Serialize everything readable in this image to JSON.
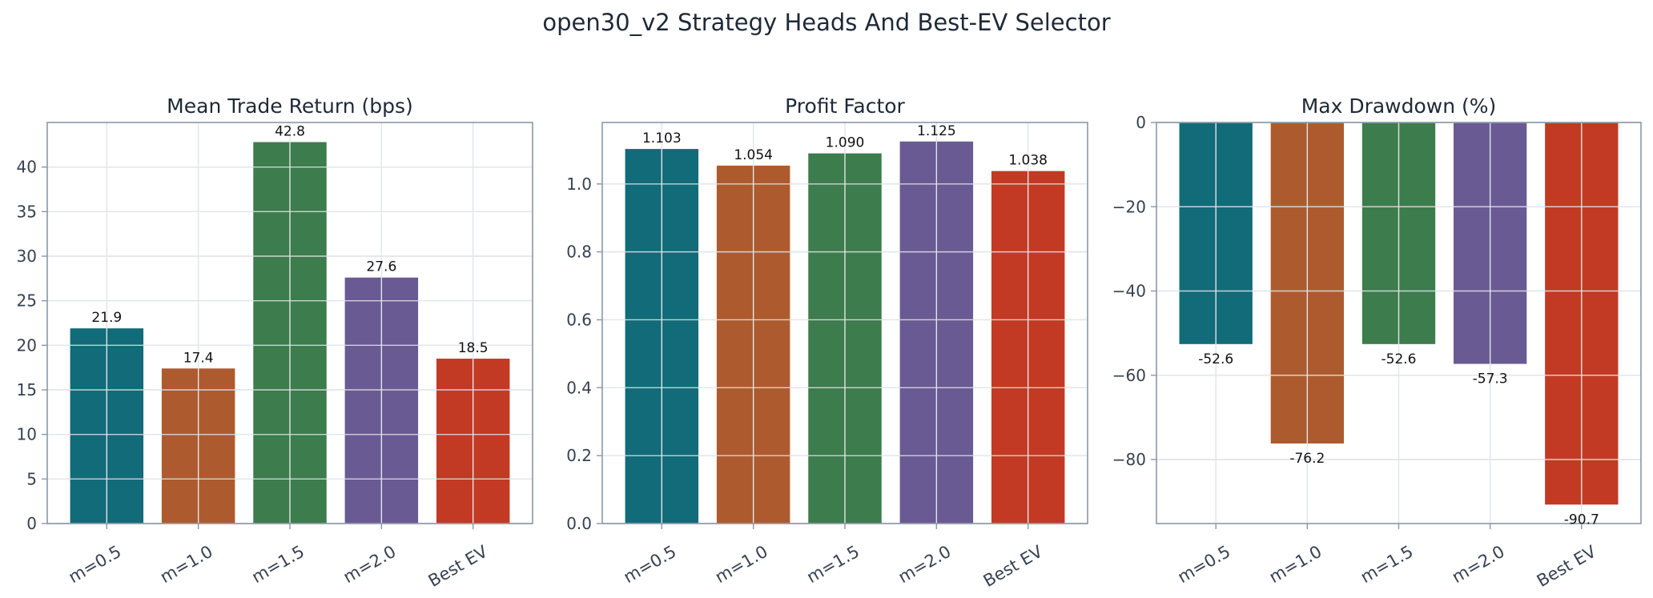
{
  "title": "open30_v2 Strategy Heads And Best-EV Selector",
  "colors": {
    "text": "#1f2937",
    "tick_text": "#374151",
    "axis": "#8a97a6",
    "grid": "#e1e5ea",
    "series": [
      "#126b78",
      "#ad5b2e",
      "#3d7c4c",
      "#6a5a93",
      "#c23a23"
    ]
  },
  "chart_data": [
    {
      "type": "bar",
      "title": "Mean Trade Return (bps)",
      "categories": [
        "m=0.5",
        "m=1.0",
        "m=1.5",
        "m=2.0",
        "Best EV"
      ],
      "values": [
        21.9,
        17.4,
        42.8,
        27.6,
        18.5
      ],
      "value_labels": [
        "21.9",
        "17.4",
        "42.8",
        "27.6",
        "18.5"
      ],
      "xlabel": "",
      "ylabel": "",
      "ylim": [
        0,
        45
      ],
      "yticks": [
        0,
        5,
        10,
        15,
        20,
        25,
        30,
        35,
        40
      ],
      "ytick_labels": [
        "0",
        "5",
        "10",
        "15",
        "20",
        "25",
        "30",
        "35",
        "40"
      ],
      "grid": true
    },
    {
      "type": "bar",
      "title": "Profit Factor",
      "categories": [
        "m=0.5",
        "m=1.0",
        "m=1.5",
        "m=2.0",
        "Best EV"
      ],
      "values": [
        1.103,
        1.054,
        1.09,
        1.125,
        1.038
      ],
      "value_labels": [
        "1.103",
        "1.054",
        "1.090",
        "1.125",
        "1.038"
      ],
      "xlabel": "",
      "ylabel": "",
      "ylim": [
        0,
        1.181
      ],
      "yticks": [
        0,
        0.2,
        0.4,
        0.6,
        0.8,
        1.0
      ],
      "ytick_labels": [
        "0.0",
        "0.2",
        "0.4",
        "0.6",
        "0.8",
        "1.0"
      ],
      "grid": true
    },
    {
      "type": "bar",
      "title": "Max Drawdown (%)",
      "categories": [
        "m=0.5",
        "m=1.0",
        "m=1.5",
        "m=2.0",
        "Best EV"
      ],
      "values": [
        -52.6,
        -76.2,
        -52.6,
        -57.3,
        -90.7
      ],
      "value_labels": [
        "-52.6",
        "-76.2",
        "-52.6",
        "-57.3",
        "-90.7"
      ],
      "xlabel": "",
      "ylabel": "",
      "ylim": [
        -95.2,
        0
      ],
      "yticks": [
        0,
        -20,
        -40,
        -60,
        -80
      ],
      "ytick_labels": [
        "0",
        "−20",
        "−40",
        "−60",
        "−80"
      ],
      "grid": true
    }
  ]
}
